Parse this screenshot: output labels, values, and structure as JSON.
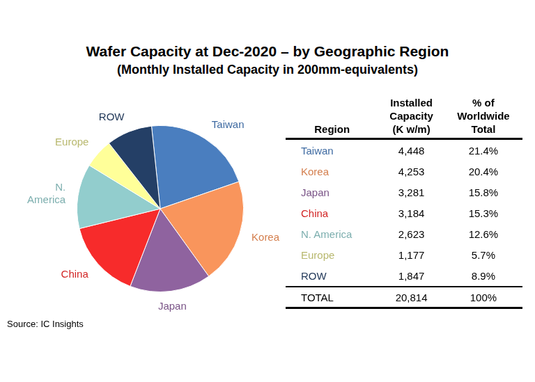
{
  "chart_data": {
    "type": "pie",
    "title": "Wafer Capacity at Dec-2020 – by Geographic Region",
    "subtitle": "(Monthly Installed Capacity in 200mm-equivalents)",
    "categories": [
      "Taiwan",
      "Korea",
      "Japan",
      "China",
      "N. America",
      "Europe",
      "ROW"
    ],
    "values": [
      21.4,
      20.4,
      15.8,
      15.3,
      12.6,
      5.7,
      8.9
    ],
    "colors": [
      "#4a7ebf",
      "#f9955c",
      "#8f639f",
      "#f72b2b",
      "#92cdcd",
      "#ffff99",
      "#243f66"
    ]
  },
  "table": {
    "header": [
      [
        "Region"
      ],
      [
        "Installed",
        "Capacity",
        "(K w/m)"
      ],
      [
        "% of",
        "Worldwide",
        "Total"
      ]
    ],
    "rows": [
      [
        "Taiwan",
        "4,448",
        "21.4%"
      ],
      [
        "Korea",
        "4,253",
        "20.4%"
      ],
      [
        "Japan",
        "3,281",
        "15.8%"
      ],
      [
        "China",
        "3,184",
        "15.3%"
      ],
      [
        "N. America",
        "2,623",
        "12.6%"
      ],
      [
        "Europe",
        "1,177",
        "5.7%"
      ],
      [
        "ROW",
        "1,847",
        "8.9%"
      ]
    ],
    "total": [
      "TOTAL",
      "20,814",
      "100%"
    ]
  },
  "source": "Source:  IC Insights"
}
